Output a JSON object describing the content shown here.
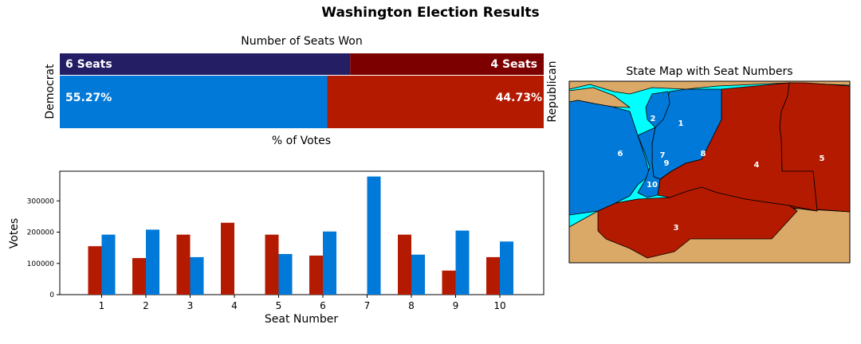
{
  "title": "Washington Election Results",
  "colors": {
    "democrat_seats": "#241f65",
    "republican_seats": "#7d0000",
    "democrat_votes": "#0079d8",
    "republican_votes": "#b41a00",
    "ocean": "#00ffff",
    "neighbor_land": "#dba967"
  },
  "chart_data": [
    {
      "type": "bar",
      "orientation": "horizontal-stacked",
      "title": "Number of Seats Won",
      "left_label": "Democrat",
      "right_label": "Republican",
      "xlabel": "% of Votes",
      "series": [
        {
          "name": "Democrat",
          "seats": 6,
          "seats_label": "6 Seats",
          "vote_pct": 55.27,
          "vote_label": "55.27%"
        },
        {
          "name": "Republican",
          "seats": 4,
          "seats_label": "4 Seats",
          "vote_pct": 44.73,
          "vote_label": "44.73%"
        }
      ]
    },
    {
      "type": "bar",
      "title": "",
      "xlabel": "Seat Number",
      "ylabel": "Votes",
      "ylim": [
        0,
        395000
      ],
      "yticks": [
        0,
        100000,
        200000,
        300000
      ],
      "ytick_labels": [
        "0",
        "100000",
        "200000",
        "300000"
      ],
      "categories": [
        "1",
        "2",
        "3",
        "4",
        "5",
        "6",
        "7",
        "8",
        "9",
        "10"
      ],
      "series": [
        {
          "name": "Republican",
          "values": [
            155000,
            117000,
            192000,
            230000,
            192000,
            125000,
            0,
            192000,
            77000,
            120000
          ]
        },
        {
          "name": "Democrat",
          "values": [
            192000,
            208000,
            120000,
            0,
            130000,
            202000,
            378000,
            128000,
            205000,
            170000
          ]
        }
      ]
    },
    {
      "type": "map",
      "title": "State Map with Seat Numbers",
      "seat_labels": [
        "1",
        "2",
        "3",
        "4",
        "5",
        "6",
        "7",
        "8",
        "9",
        "10"
      ]
    }
  ]
}
